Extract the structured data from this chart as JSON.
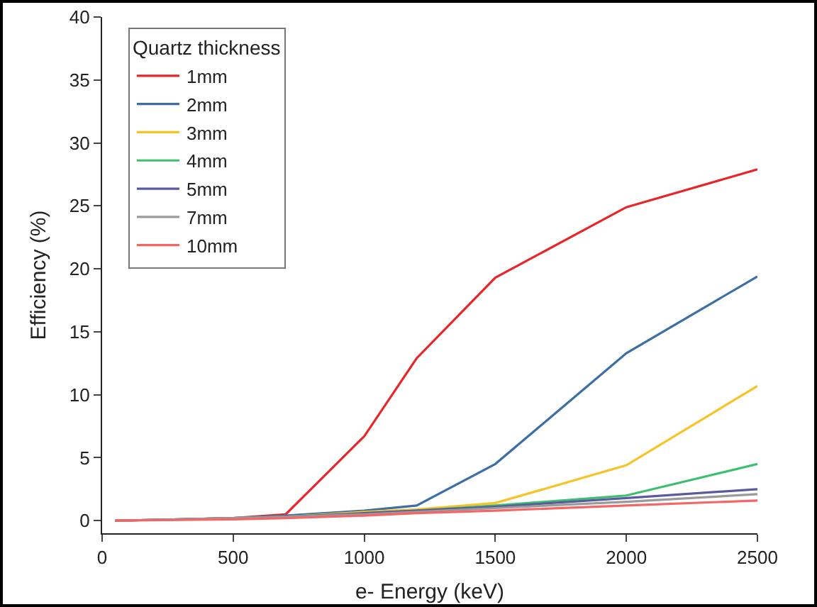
{
  "chart_data": {
    "type": "line",
    "xlabel": "e- Energy (keV)",
    "ylabel": "Efficiency (%)",
    "legend_title": "Quartz thickness",
    "legend": "top left",
    "grid": false,
    "marker": "none",
    "line_style": "solid",
    "x": [
      50,
      500,
      700,
      1000,
      1200,
      1500,
      2000,
      2500
    ],
    "xlim": [
      0,
      2500
    ],
    "xticks": [
      0,
      500,
      1000,
      1500,
      2000,
      2500
    ],
    "ylim": [
      -1,
      40
    ],
    "yticks": [
      0,
      5,
      10,
      15,
      20,
      25,
      30,
      35,
      40
    ],
    "series": [
      {
        "name": "1mm",
        "color": "#e8262a",
        "values": [
          0,
          0.2,
          0.5,
          6.7,
          12.9,
          19.3,
          24.9,
          27.9
        ]
      },
      {
        "name": "2mm",
        "color": "#3d6fa5",
        "values": [
          0,
          0.2,
          0.4,
          0.8,
          1.2,
          4.5,
          13.3,
          19.4
        ]
      },
      {
        "name": "3mm",
        "color": "#f7c325",
        "values": [
          0,
          0.2,
          0.3,
          0.7,
          0.9,
          1.4,
          4.4,
          10.7
        ]
      },
      {
        "name": "4mm",
        "color": "#3cbf6e",
        "values": [
          null,
          null,
          null,
          0.6,
          0.8,
          1.2,
          2.0,
          4.5
        ]
      },
      {
        "name": "5mm",
        "color": "#5a5a9e",
        "values": [
          0,
          0.2,
          0.3,
          0.6,
          0.8,
          1.1,
          1.8,
          2.5
        ]
      },
      {
        "name": "7mm",
        "color": "#9a9a9a",
        "values": [
          0,
          0.2,
          0.3,
          0.5,
          0.7,
          1.0,
          1.5,
          2.1
        ]
      },
      {
        "name": "10mm",
        "color": "#f56565",
        "values": [
          0,
          0.1,
          0.2,
          0.4,
          0.6,
          0.8,
          1.2,
          1.6
        ]
      }
    ]
  }
}
